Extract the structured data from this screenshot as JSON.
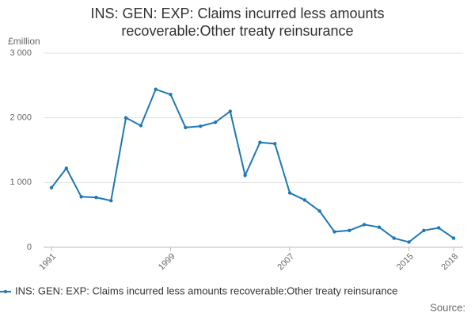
{
  "chart_data": {
    "type": "line",
    "title": "INS: GEN: EXP: Claims incurred less amounts recoverable:Other treaty reinsurance",
    "y_label": "£million",
    "source": "Source:",
    "x": [
      1991,
      1992,
      1993,
      1994,
      1995,
      1996,
      1997,
      1998,
      1999,
      2000,
      2001,
      2002,
      2003,
      2004,
      2005,
      2006,
      2007,
      2008,
      2009,
      2010,
      2011,
      2012,
      2013,
      2014,
      2015,
      2016,
      2017,
      2018
    ],
    "series": [
      {
        "name": "INS: GEN: EXP: Claims incurred less amounts recoverable:Other treaty reinsurance",
        "color": "#1f78b4",
        "values": [
          920,
          1220,
          780,
          770,
          720,
          2000,
          1880,
          2440,
          2360,
          1850,
          1870,
          1930,
          2100,
          1110,
          1620,
          1600,
          840,
          730,
          560,
          240,
          260,
          350,
          310,
          140,
          80,
          260,
          300,
          140
        ]
      }
    ],
    "xlim": [
      1991,
      2018
    ],
    "xticks": [
      1991,
      1999,
      2007,
      2015,
      2018
    ],
    "ylim": [
      0,
      3000
    ],
    "yticks": [
      0,
      {
        "value": 1000,
        "label": "1 000"
      },
      {
        "value": 2000,
        "label": "2 000"
      },
      {
        "value": 3000,
        "label": "3 000"
      }
    ],
    "grid": true
  }
}
